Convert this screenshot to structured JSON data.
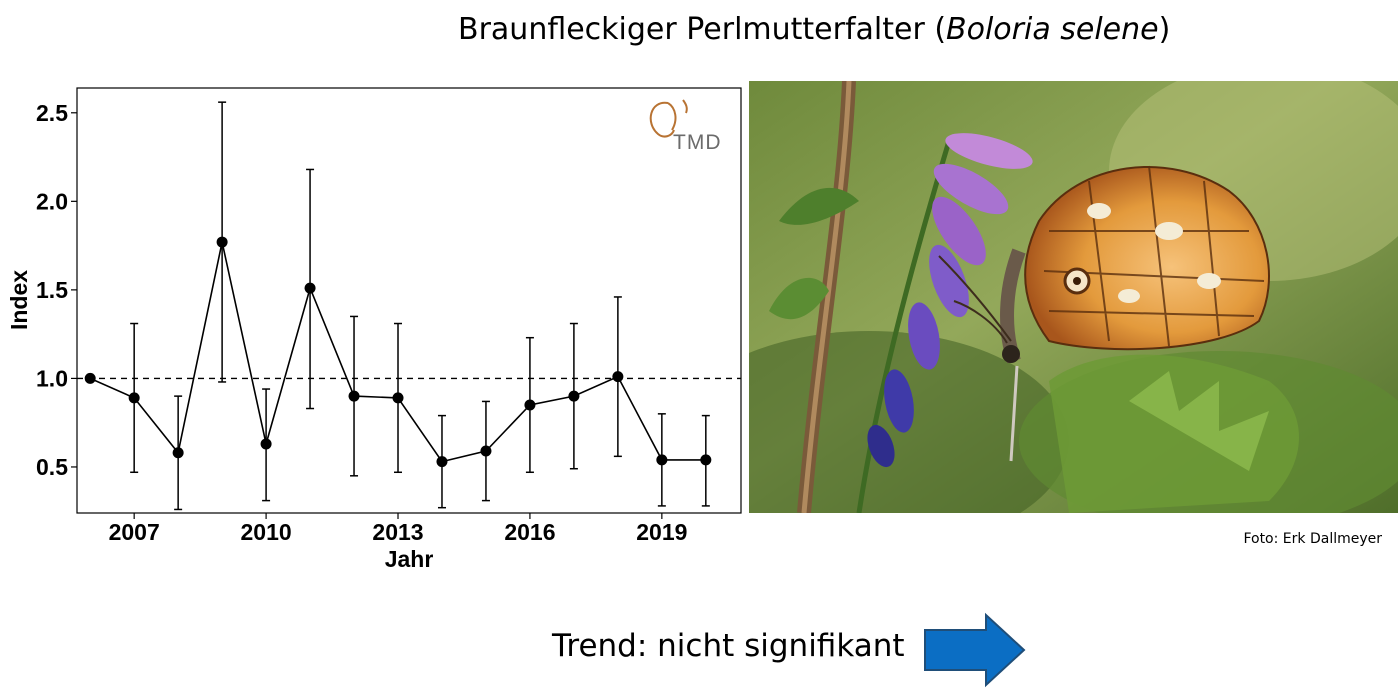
{
  "title": {
    "main": "Braunfleckiger Perlmutterfalter (",
    "species": "Boloria selene",
    "close": ")"
  },
  "logo": {
    "text": "TMD",
    "color": "#b87333"
  },
  "photo": {
    "credit": "Foto: Erk Dallmeyer"
  },
  "trend": {
    "label": "Trend: nicht signifikant",
    "arrow_icon": "arrow-right-icon",
    "arrow_color": "#0b6ec4"
  },
  "chart_data": {
    "type": "line",
    "xlabel": "Jahr",
    "ylabel": "Index",
    "x_ticks": [
      2007,
      2010,
      2013,
      2016,
      2019
    ],
    "y_ticks": [
      0.5,
      1.0,
      1.5,
      2.0,
      2.5
    ],
    "xlim": [
      2005.7,
      2020.8
    ],
    "ylim": [
      0.24,
      2.64
    ],
    "reference_line": 1.0,
    "grid": false,
    "series": [
      {
        "x": [
          2006,
          2007,
          2008,
          2009,
          2010,
          2011,
          2012,
          2013,
          2014,
          2015,
          2016,
          2017,
          2018,
          2019,
          2020
        ],
        "values": [
          1.0,
          0.89,
          0.58,
          1.77,
          0.63,
          1.51,
          0.9,
          0.89,
          0.53,
          0.59,
          0.85,
          0.9,
          1.01,
          0.54,
          0.54
        ],
        "lower": [
          1.0,
          0.47,
          0.26,
          0.98,
          0.31,
          0.83,
          0.45,
          0.47,
          0.27,
          0.31,
          0.47,
          0.49,
          0.56,
          0.28,
          0.28
        ],
        "upper": [
          1.0,
          1.31,
          0.9,
          2.56,
          0.94,
          2.18,
          1.35,
          1.31,
          0.79,
          0.87,
          1.23,
          1.31,
          1.46,
          0.8,
          0.79
        ]
      }
    ]
  }
}
